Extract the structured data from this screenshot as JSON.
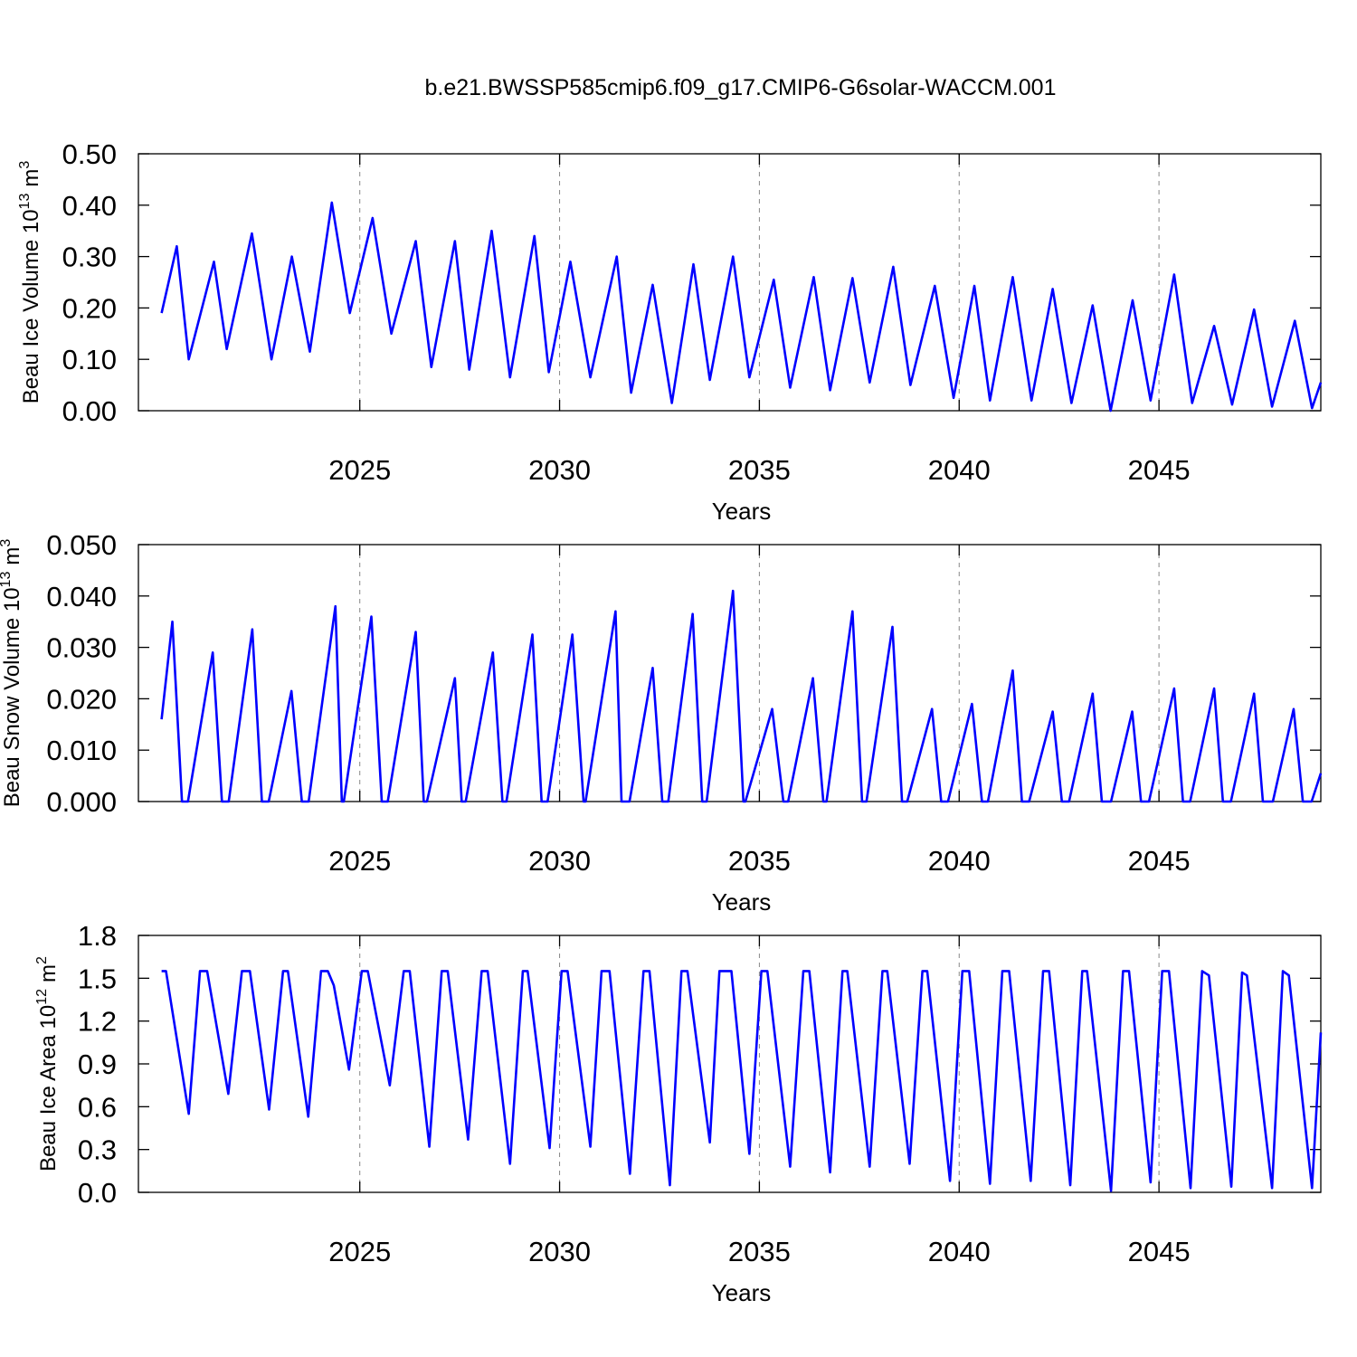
{
  "chart_data": [
    {
      "type": "line",
      "title": "b.e21.BWSSP585cmip6.f09_g17.CMIP6-G6solar-WACCM.001",
      "ylabel": "Beau Ice Volume 10",
      "ylabel_exp": "13",
      "ylabel_unit": "m",
      "ylabel_unit_exp": "3",
      "xlabel": "Years",
      "color": "#0000ff",
      "grid": true,
      "xlim": [
        2019.46,
        2049.05
      ],
      "xticks": [
        2025,
        2030,
        2035,
        2040,
        2045
      ],
      "ylim": [
        0,
        0.5
      ],
      "yticks": [
        {
          "value": 0,
          "label": "0.00"
        },
        {
          "value": 0.1,
          "label": "0.10"
        },
        {
          "value": 0.2,
          "label": "0.20"
        },
        {
          "value": 0.3,
          "label": "0.30"
        },
        {
          "value": 0.4,
          "label": "0.40"
        },
        {
          "value": 0.5,
          "label": "0.50"
        }
      ],
      "x": [
        2020.04,
        2020.42,
        2020.72,
        2021.35,
        2021.67,
        2022.3,
        2022.79,
        2023.3,
        2023.75,
        2024.3,
        2024.75,
        2025.32,
        2025.79,
        2026.4,
        2026.79,
        2027.38,
        2027.74,
        2028.3,
        2028.76,
        2029.37,
        2029.73,
        2030.27,
        2030.77,
        2031.43,
        2031.79,
        2032.33,
        2032.81,
        2033.35,
        2033.76,
        2034.34,
        2034.75,
        2035.36,
        2035.77,
        2036.36,
        2036.77,
        2037.33,
        2037.76,
        2038.35,
        2038.78,
        2039.39,
        2039.86,
        2040.38,
        2040.77,
        2041.34,
        2041.81,
        2042.34,
        2042.81,
        2043.34,
        2043.79,
        2044.34,
        2044.79,
        2045.38,
        2045.83,
        2046.38,
        2046.83,
        2047.38,
        2047.83,
        2048.4,
        2048.83,
        2049.05
      ],
      "values": [
        0.19,
        0.32,
        0.1,
        0.29,
        0.12,
        0.345,
        0.1,
        0.3,
        0.115,
        0.405,
        0.19,
        0.375,
        0.15,
        0.33,
        0.085,
        0.33,
        0.08,
        0.35,
        0.065,
        0.34,
        0.075,
        0.29,
        0.065,
        0.3,
        0.035,
        0.245,
        0.015,
        0.285,
        0.06,
        0.3,
        0.065,
        0.255,
        0.045,
        0.26,
        0.04,
        0.258,
        0.055,
        0.28,
        0.05,
        0.243,
        0.025,
        0.243,
        0.02,
        0.26,
        0.02,
        0.237,
        0.015,
        0.205,
        0.0,
        0.215,
        0.02,
        0.265,
        0.015,
        0.165,
        0.012,
        0.197,
        0.008,
        0.175,
        0.005,
        0.055
      ]
    },
    {
      "type": "line",
      "ylabel": "Beau Snow Volume 10",
      "ylabel_exp": "13",
      "ylabel_unit": "m",
      "ylabel_unit_exp": "3",
      "xlabel": "Years",
      "color": "#0000ff",
      "grid": true,
      "xlim": [
        2019.46,
        2049.05
      ],
      "xticks": [
        2025,
        2030,
        2035,
        2040,
        2045
      ],
      "ylim": [
        0,
        0.05
      ],
      "yticks": [
        {
          "value": 0,
          "label": "0.000"
        },
        {
          "value": 0.01,
          "label": "0.010"
        },
        {
          "value": 0.02,
          "label": "0.020"
        },
        {
          "value": 0.03,
          "label": "0.030"
        },
        {
          "value": 0.04,
          "label": "0.040"
        },
        {
          "value": 0.05,
          "label": "0.050"
        }
      ],
      "x": [
        2020.04,
        2020.31,
        2020.55,
        2020.7,
        2021.32,
        2021.55,
        2021.72,
        2022.31,
        2022.55,
        2022.72,
        2023.29,
        2023.55,
        2023.72,
        2024.39,
        2024.55,
        2024.6,
        2025.29,
        2025.55,
        2025.7,
        2026.4,
        2026.6,
        2026.68,
        2027.38,
        2027.55,
        2027.65,
        2028.33,
        2028.57,
        2028.67,
        2029.32,
        2029.55,
        2029.7,
        2030.32,
        2030.6,
        2030.65,
        2031.4,
        2031.55,
        2031.75,
        2032.33,
        2032.57,
        2032.72,
        2033.33,
        2033.57,
        2033.68,
        2034.34,
        2034.6,
        2034.65,
        2035.32,
        2035.6,
        2035.72,
        2036.34,
        2036.6,
        2036.68,
        2037.33,
        2037.57,
        2037.68,
        2038.33,
        2038.57,
        2038.7,
        2039.32,
        2039.55,
        2039.72,
        2040.32,
        2040.57,
        2040.72,
        2041.34,
        2041.57,
        2041.75,
        2042.34,
        2042.57,
        2042.75,
        2043.34,
        2043.57,
        2043.8,
        2044.33,
        2044.55,
        2044.75,
        2045.38,
        2045.6,
        2045.78,
        2046.38,
        2046.6,
        2046.8,
        2047.38,
        2047.6,
        2047.85,
        2048.37,
        2048.6,
        2048.82,
        2049.05
      ],
      "values": [
        0.016,
        0.035,
        0,
        0,
        0.029,
        0,
        0,
        0.0335,
        0,
        0,
        0.0215,
        0,
        0,
        0.038,
        0,
        0,
        0.036,
        0,
        0,
        0.033,
        0,
        0,
        0.024,
        0,
        0,
        0.029,
        0,
        0,
        0.0325,
        0,
        0,
        0.0325,
        0,
        0,
        0.037,
        0,
        0,
        0.026,
        0,
        0,
        0.0365,
        0,
        0,
        0.041,
        0,
        0,
        0.018,
        0,
        0,
        0.024,
        0,
        0,
        0.037,
        0,
        0,
        0.034,
        0,
        0,
        0.018,
        0,
        0,
        0.019,
        0,
        0,
        0.0255,
        0,
        0,
        0.0175,
        0,
        0,
        0.021,
        0,
        0,
        0.0175,
        0,
        0,
        0.022,
        0,
        0,
        0.022,
        0,
        0,
        0.021,
        0,
        0,
        0.018,
        0,
        0,
        0.0055
      ]
    },
    {
      "type": "line",
      "ylabel": "Beau Ice Area 10",
      "ylabel_exp": "12",
      "ylabel_unit": "m",
      "ylabel_unit_exp": "2",
      "xlabel": "Years",
      "color": "#0000ff",
      "grid": true,
      "xlim": [
        2019.46,
        2049.05
      ],
      "xticks": [
        2025,
        2030,
        2035,
        2040,
        2045
      ],
      "ylim": [
        0,
        1.8
      ],
      "yticks": [
        {
          "value": 0,
          "label": "0.0"
        },
        0.3,
        0.6,
        0.9,
        1.2,
        1.5,
        1.8
      ],
      "x": [
        2020.04,
        2020.15,
        2020.72,
        2021.0,
        2021.18,
        2021.71,
        2022.05,
        2022.25,
        2022.73,
        2023.08,
        2023.2,
        2023.71,
        2024.03,
        2024.2,
        2024.35,
        2024.73,
        2025.05,
        2025.2,
        2025.75,
        2026.1,
        2026.25,
        2026.74,
        2027.05,
        2027.2,
        2027.71,
        2028.05,
        2028.2,
        2028.76,
        2029.08,
        2029.2,
        2029.75,
        2030.05,
        2030.2,
        2030.77,
        2031.05,
        2031.25,
        2031.76,
        2032.1,
        2032.25,
        2032.76,
        2033.05,
        2033.2,
        2033.76,
        2034.0,
        2034.3,
        2034.75,
        2035.05,
        2035.2,
        2035.77,
        2036.1,
        2036.25,
        2036.77,
        2037.08,
        2037.2,
        2037.76,
        2038.08,
        2038.2,
        2038.76,
        2039.08,
        2039.2,
        2039.77,
        2040.08,
        2040.25,
        2040.77,
        2041.08,
        2041.25,
        2041.79,
        2042.1,
        2042.25,
        2042.78,
        2043.08,
        2043.2,
        2043.8,
        2044.1,
        2044.25,
        2044.79,
        2045.08,
        2045.25,
        2045.79,
        2046.08,
        2046.25,
        2046.81,
        2047.08,
        2047.2,
        2047.83,
        2048.1,
        2048.25,
        2048.83,
        2049.05
      ],
      "values": [
        1.55,
        1.55,
        0.55,
        1.55,
        1.55,
        0.69,
        1.55,
        1.55,
        0.58,
        1.55,
        1.55,
        0.53,
        1.55,
        1.55,
        1.45,
        0.86,
        1.55,
        1.55,
        0.75,
        1.55,
        1.55,
        0.32,
        1.55,
        1.55,
        0.37,
        1.55,
        1.55,
        0.2,
        1.55,
        1.55,
        0.31,
        1.55,
        1.55,
        0.32,
        1.55,
        1.55,
        0.13,
        1.55,
        1.55,
        0.05,
        1.55,
        1.55,
        0.35,
        1.55,
        1.55,
        0.27,
        1.55,
        1.55,
        0.18,
        1.55,
        1.55,
        0.14,
        1.55,
        1.55,
        0.18,
        1.55,
        1.55,
        0.2,
        1.55,
        1.55,
        0.08,
        1.55,
        1.55,
        0.06,
        1.55,
        1.55,
        0.08,
        1.55,
        1.55,
        0.05,
        1.55,
        1.55,
        0.01,
        1.55,
        1.55,
        0.07,
        1.55,
        1.55,
        0.03,
        1.55,
        1.52,
        0.04,
        1.54,
        1.52,
        0.03,
        1.55,
        1.52,
        0.03,
        1.12
      ]
    }
  ]
}
